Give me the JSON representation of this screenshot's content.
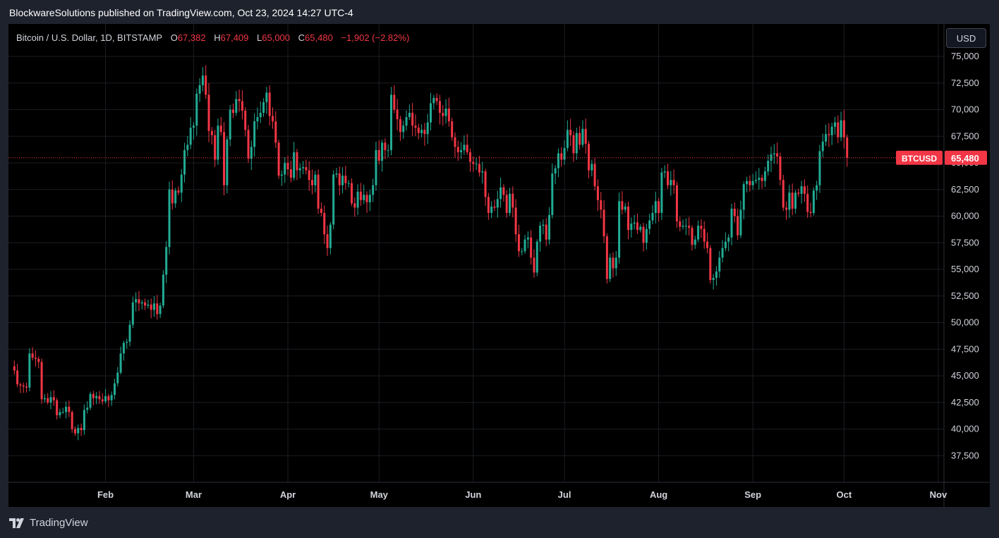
{
  "header": {
    "published_text": "BlockwareSolutions published on TradingView.com, Oct 23, 2024 14:27 UTC-4"
  },
  "legend": {
    "symbol_text": "Bitcoin / U.S. Dollar, 1D, BITSTAMP",
    "open_label": "O",
    "open_value": "67,382",
    "high_label": "H",
    "high_value": "67,409",
    "low_label": "L",
    "low_value": "65,000",
    "close_label": "C",
    "close_value": "65,480",
    "change_value": "−1,902 (−2.82%)"
  },
  "currency_button": {
    "label": "USD"
  },
  "footer": {
    "brand": "TradingView"
  },
  "colors": {
    "up": "#22ab94",
    "down": "#f23645",
    "grid": "#1b1d22",
    "axis_text": "#d1d4dc",
    "price_line": "#f23645"
  },
  "chart_data": {
    "type": "candlestick",
    "symbol": "BTCUSD",
    "last_price": 65480,
    "last_price_label": "65,480",
    "ylim": [
      35000,
      76000
    ],
    "y_ticks": [
      37500,
      40000,
      42500,
      45000,
      47500,
      50000,
      52500,
      55000,
      57500,
      60000,
      62500,
      65000,
      67500,
      70000,
      72500,
      75000
    ],
    "y_tick_labels": [
      "37,500",
      "40,000",
      "42,500",
      "45,000",
      "47,500",
      "50,000",
      "52,500",
      "55,000",
      "57,500",
      "60,000",
      "62,500",
      "65,000",
      "67,500",
      "70,000",
      "72,500",
      "75,000"
    ],
    "x_range": [
      "2024-01-01",
      "2024-11-08"
    ],
    "x_ticks": [
      "2024-02-01",
      "2024-03-01",
      "2024-04-01",
      "2024-05-01",
      "2024-06-01",
      "2024-07-01",
      "2024-08-01",
      "2024-09-01",
      "2024-10-01",
      "2024-11-01"
    ],
    "x_tick_labels": [
      "Feb",
      "Mar",
      "Apr",
      "May",
      "Jun",
      "Jul",
      "Aug",
      "Sep",
      "Oct",
      "Nov"
    ],
    "grid": true,
    "start_date": "2024-01-02",
    "closes": [
      45500,
      44200,
      44100,
      44000,
      43900,
      47100,
      46700,
      46600,
      46300,
      42800,
      42900,
      42500,
      43000,
      42700,
      41300,
      41600,
      41600,
      42100,
      41600,
      40000,
      39600,
      40100,
      39900,
      41800,
      42000,
      43300,
      42900,
      43100,
      42800,
      42600,
      43100,
      42700,
      43200,
      44300,
      45300,
      47100,
      48100,
      48200,
      49800,
      51900,
      52200,
      51800,
      51900,
      51600,
      51700,
      51200,
      51800,
      50800,
      51600,
      54500,
      57100,
      62500,
      61200,
      62400,
      62200,
      63900,
      66200,
      66700,
      68300,
      68500,
      71500,
      72300,
      73200,
      71400,
      68000,
      67600,
      65300,
      68500,
      67900,
      62900,
      67200,
      70000,
      69700,
      71000,
      70800,
      69900,
      68100,
      65400,
      66500,
      68900,
      69300,
      69700,
      70700,
      71600,
      69400,
      68900,
      66900,
      63800,
      63900,
      65000,
      64400,
      63600,
      66000,
      64300,
      64500,
      64600,
      64300,
      63400,
      62900,
      63900,
      60700,
      60300,
      58300,
      57000,
      59200,
      63900,
      64000,
      62900,
      63800,
      63100,
      63100,
      61200,
      60800,
      62300,
      61500,
      62000,
      61300,
      62000,
      62900,
      66200,
      65200,
      66900,
      66200,
      66200,
      71400,
      70000,
      69100,
      67900,
      68500,
      69300,
      69700,
      68500,
      68300,
      67800,
      68100,
      67700,
      68800,
      70600,
      71100,
      70800,
      69700,
      69400,
      70100,
      68900,
      67400,
      66500,
      66000,
      66200,
      66700,
      66000,
      65100,
      64900,
      64900,
      64100,
      64200,
      61800,
      60300,
      60900,
      60800,
      61600,
      62700,
      62000,
      60300,
      62100,
      60800,
      58300,
      56700,
      56700,
      57800,
      58000,
      56100,
      54700,
      57600,
      59100,
      59200,
      57800,
      60100,
      64000,
      64500,
      65900,
      65300,
      66400,
      68100,
      67600,
      65900,
      67800,
      66700,
      68200,
      66800,
      64300,
      64900,
      62800,
      61500,
      60600,
      58100,
      54100,
      56100,
      55100,
      56100,
      61400,
      60600,
      60900,
      58700,
      59300,
      59400,
      58700,
      59000,
      57500,
      58800,
      59600,
      60300,
      61400,
      60300,
      64100,
      64200,
      62900,
      63400,
      62900,
      59500,
      59000,
      59100,
      59100,
      58900,
      57300,
      57800,
      59100,
      58800,
      57600,
      57000,
      54000,
      54200,
      54800,
      56100,
      57000,
      57600,
      58000,
      60700,
      60000,
      58200,
      60600,
      63000,
      63300,
      62900,
      63300,
      63400,
      63600,
      63300,
      64200,
      65200,
      65800,
      65900,
      65600,
      63400,
      60800,
      60600,
      62200,
      60700,
      62200,
      62100,
      62800,
      62100,
      60400,
      60300,
      62400,
      62900,
      66100,
      67000,
      67700,
      67600,
      68400,
      68800,
      67400,
      69000,
      67400,
      65480
    ]
  }
}
